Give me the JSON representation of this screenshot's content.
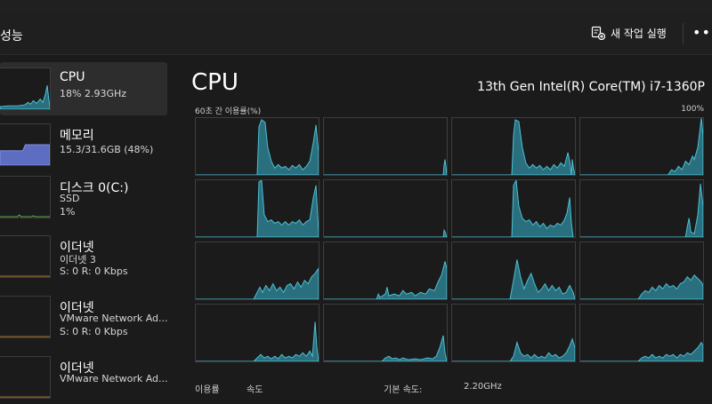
{
  "header": {
    "title": "성능",
    "new_task_label": "새 작업 실행"
  },
  "sidebar": {
    "items": [
      {
        "name": "CPU",
        "lines": [
          "18% 2.93GHz"
        ],
        "color": "#4cc2d8",
        "active": true
      },
      {
        "name": "메모리",
        "lines": [
          "15.3/31.6GB (48%)"
        ],
        "color": "#7f8fe0",
        "active": false
      },
      {
        "name": "디스크 0(C:)",
        "lines": [
          "SSD",
          "1%"
        ],
        "color": "#6fbf53",
        "active": false
      },
      {
        "name": "이더넷",
        "lines": [
          "이더넷 3",
          "S: 0 R: 0 Kbps"
        ],
        "color": "#c28a3a",
        "active": false
      },
      {
        "name": "이더넷",
        "lines": [
          "VMware Network Ad...",
          "S: 0 R: 0 Kbps"
        ],
        "color": "#c28a3a",
        "active": false
      },
      {
        "name": "이더넷",
        "lines": [
          "VMware Network Ad...",
          ""
        ],
        "color": "#c28a3a",
        "active": false
      }
    ]
  },
  "main": {
    "title": "CPU",
    "processor": "13th Gen Intel(R) Core(TM) i7-1360P",
    "graph_label": "60초 간 이용률(%)",
    "graph_max": "100%",
    "accent": "#4cc2d8",
    "bottom_labels": [
      "이용률",
      "속도",
      "기본 속도:",
      "2.20GHz"
    ]
  }
}
